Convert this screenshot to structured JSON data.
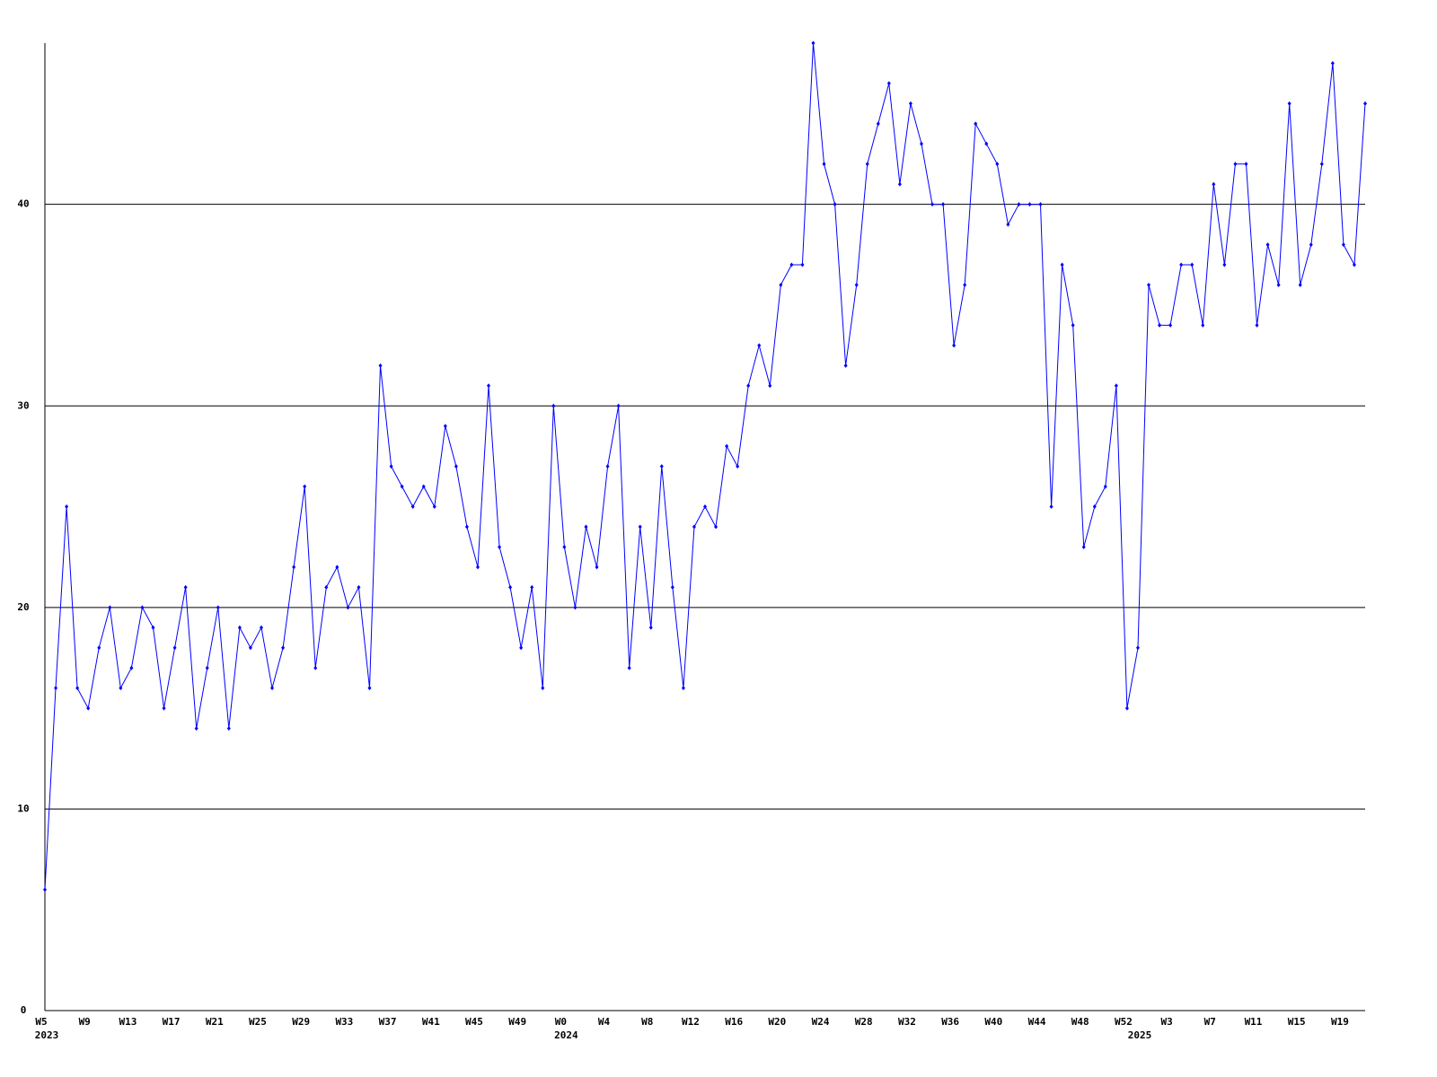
{
  "chart_data": {
    "type": "line",
    "categories": [
      "W5",
      null,
      null,
      null,
      "W9",
      null,
      null,
      null,
      "W13",
      null,
      null,
      null,
      "W17",
      null,
      null,
      null,
      "W21",
      null,
      null,
      null,
      "W25",
      null,
      null,
      null,
      "W29",
      null,
      null,
      null,
      "W33",
      null,
      null,
      null,
      "W37",
      null,
      null,
      null,
      "W41",
      null,
      null,
      null,
      "W45",
      null,
      null,
      null,
      "W49",
      null,
      null,
      null,
      "W0",
      null,
      null,
      null,
      "W4",
      null,
      null,
      null,
      "W8",
      null,
      null,
      null,
      "W12",
      null,
      null,
      null,
      "W16",
      null,
      null,
      null,
      "W20",
      null,
      null,
      null,
      "W24",
      null,
      null,
      null,
      "W28",
      null,
      null,
      null,
      "W32",
      null,
      null,
      null,
      "W36",
      null,
      null,
      null,
      "W40",
      null,
      null,
      null,
      "W44",
      null,
      null,
      null,
      "W48",
      null,
      null,
      null,
      "W52",
      null,
      null,
      null,
      "W3",
      null,
      null,
      null,
      "W7",
      null,
      null,
      null,
      "W11",
      null,
      null,
      null,
      "W15",
      null,
      null,
      null,
      "W19",
      null,
      null
    ],
    "year_labels": [
      "2023",
      null,
      null,
      null,
      null,
      null,
      null,
      null,
      null,
      null,
      null,
      null,
      null,
      null,
      null,
      null,
      null,
      null,
      null,
      null,
      null,
      null,
      null,
      null,
      null,
      null,
      null,
      null,
      null,
      null,
      null,
      null,
      null,
      null,
      null,
      null,
      null,
      null,
      null,
      null,
      null,
      null,
      null,
      null,
      null,
      null,
      null,
      null,
      "2024",
      null,
      null,
      null,
      null,
      null,
      null,
      null,
      null,
      null,
      null,
      null,
      null,
      null,
      null,
      null,
      null,
      null,
      null,
      null,
      null,
      null,
      null,
      null,
      null,
      null,
      null,
      null,
      null,
      null,
      null,
      null,
      null,
      null,
      null,
      null,
      null,
      null,
      null,
      null,
      null,
      null,
      null,
      null,
      null,
      null,
      null,
      null,
      null,
      null,
      null,
      null,
      null,
      "2025",
      null,
      null,
      null,
      null,
      null,
      null,
      null,
      null,
      null,
      null,
      null,
      null,
      null,
      null,
      null,
      null,
      null,
      null,
      null,
      null,
      null
    ],
    "series": [
      {
        "color": "#0000ff",
        "values": [
          6,
          16,
          25,
          16,
          15,
          18,
          20,
          16,
          17,
          20,
          19,
          15,
          18,
          21,
          14,
          17,
          20,
          14,
          19,
          18,
          19,
          16,
          18,
          22,
          26,
          17,
          21,
          22,
          20,
          21,
          16,
          32,
          27,
          26,
          25,
          26,
          25,
          29,
          27,
          24,
          22,
          31,
          23,
          21,
          18,
          21,
          16,
          30,
          23,
          20,
          24,
          22,
          27,
          30,
          17,
          24,
          19,
          27,
          21,
          16,
          24,
          25,
          24,
          28,
          27,
          31,
          33,
          31,
          36,
          37,
          37,
          48,
          42,
          40,
          32,
          36,
          42,
          44,
          46,
          41,
          45,
          43,
          40,
          40,
          33,
          36,
          44,
          43,
          42,
          39,
          40,
          40,
          40,
          25,
          37,
          34,
          23,
          25,
          26,
          31,
          15,
          18,
          36,
          34,
          34,
          37,
          37,
          34,
          41,
          37,
          42,
          42,
          34,
          38,
          36,
          45,
          36,
          38,
          42,
          47,
          38,
          37,
          45
        ]
      }
    ],
    "ylim": [
      0,
      48
    ],
    "yticks": [
      0,
      10,
      20,
      30,
      40
    ],
    "grid": true
  }
}
